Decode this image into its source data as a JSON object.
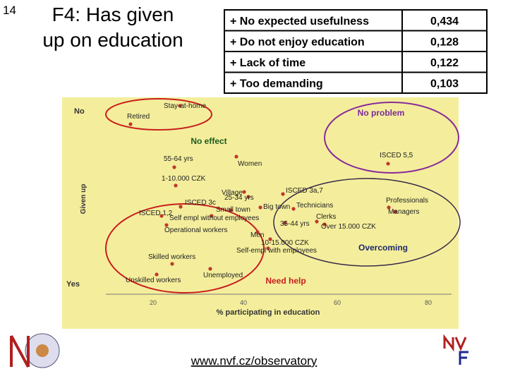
{
  "slide_number": "14",
  "title": [
    "F4: Has given",
    "up on education"
  ],
  "table": {
    "rows": [
      [
        "+ No expected usefulness",
        "0,434"
      ],
      [
        "+ Do not enjoy education",
        "0,128"
      ],
      [
        "+ Lack of time",
        "0,122"
      ],
      [
        "+ Too demanding",
        "0,103"
      ]
    ]
  },
  "diagram": {
    "y_axis_label": "Given up",
    "y_top": "No",
    "y_bottom": "Yes",
    "x_axis_label": "% participating in education",
    "x_ticks": [
      "20",
      "40",
      "60",
      "80"
    ],
    "groups": [
      "No problem",
      "No effect",
      "Overcoming",
      "Need help"
    ],
    "points": [
      "Stay-at-home",
      "Retired",
      "55-64 yrs",
      "Women",
      "1-10.000 CZK",
      "Village",
      "ISCED 3a,7",
      "25-34 yrs",
      "ISCED 5,5",
      "Professionals",
      "Managers",
      "ISCED 3c",
      "Small town",
      "Big town",
      "Technicians",
      "ISCED 1,2",
      "Self empl without employees",
      "Clerks",
      "35-44 yrs",
      "Over 15.000 CZK",
      "Operational workers",
      "Men",
      "10-15.000 CZK",
      "Self-empl with employees",
      "Skilled workers",
      "Unemployed",
      "Unskilled workers"
    ]
  },
  "footer": {
    "url": "www.nvf.cz/observatory"
  }
}
